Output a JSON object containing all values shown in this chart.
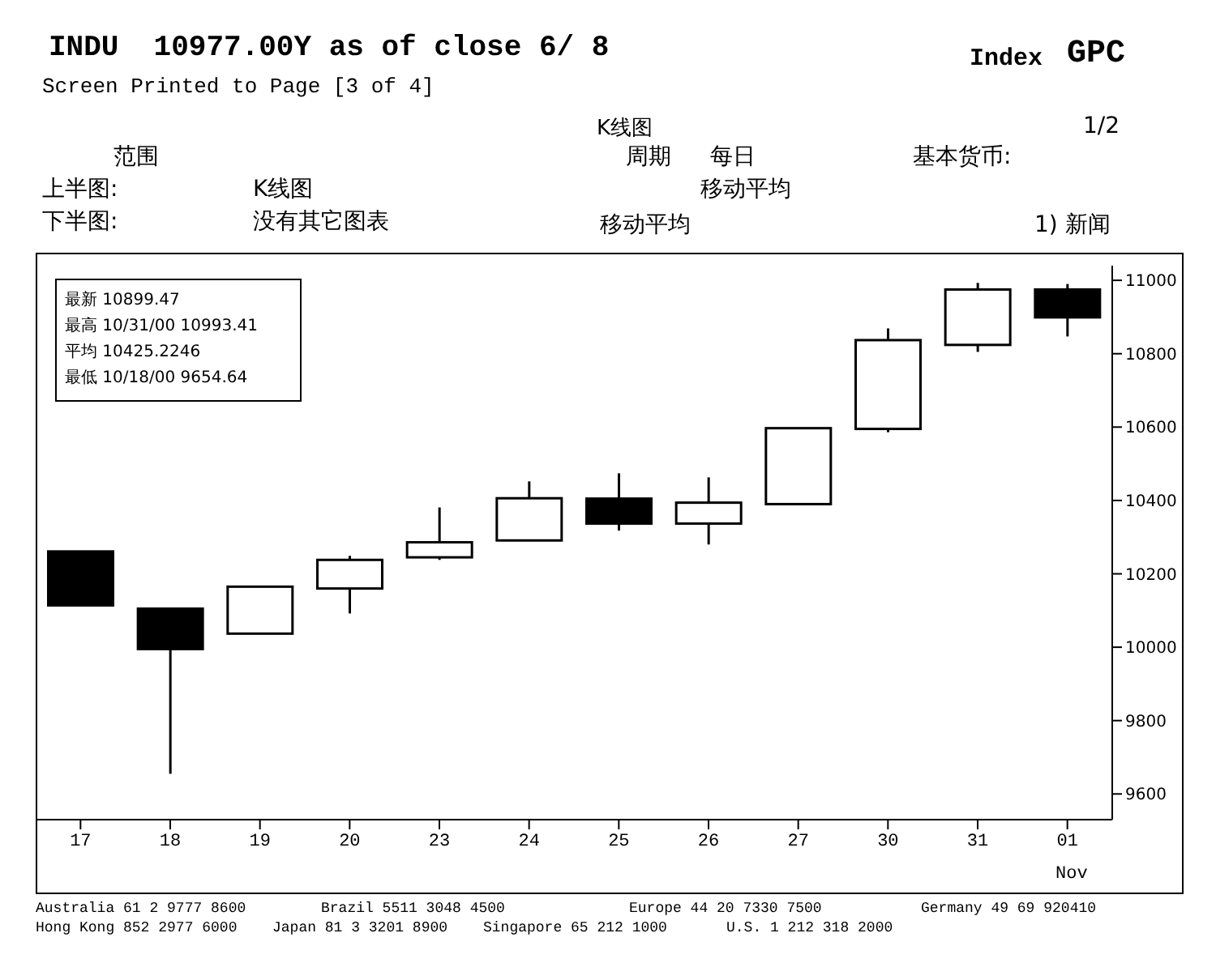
{
  "chart_data": {
    "type": "candlestick",
    "title": "INDU  10977.00Y as of close 6/ 8",
    "subtitle": "Screen Printed to Page [3 of 4]",
    "categories": [
      "17",
      "18",
      "19",
      "20",
      "23",
      "24",
      "25",
      "26",
      "27",
      "30",
      "31",
      "01"
    ],
    "ohlc": [
      [
        10261,
        10261,
        10114,
        10114
      ],
      [
        10105,
        10105,
        9655,
        9995
      ],
      [
        10037,
        10165,
        10037,
        10165
      ],
      [
        10160,
        10249,
        10092,
        10238
      ],
      [
        10245,
        10381,
        10238,
        10286
      ],
      [
        10291,
        10452,
        10291,
        10406
      ],
      [
        10405,
        10474,
        10318,
        10337
      ],
      [
        10337,
        10463,
        10280,
        10394
      ],
      [
        10390,
        10597,
        10390,
        10597
      ],
      [
        10595,
        10869,
        10586,
        10837
      ],
      [
        10824,
        10993,
        10805,
        10975
      ],
      [
        10975,
        10990,
        10847,
        10899
      ]
    ],
    "colors": [
      "#000000",
      "#000000",
      "#ffffff",
      "#ffffff",
      "#ffffff",
      "#ffffff",
      "#000000",
      "#ffffff",
      "#ffffff",
      "#ffffff",
      "#ffffff",
      "#000000"
    ],
    "ylim": [
      9530,
      11040
    ],
    "yticks": [
      9600,
      9800,
      10000,
      10200,
      10400,
      10600,
      10800,
      11000
    ],
    "annotations": [
      "Index",
      "GPC",
      "K线图",
      "1/2",
      "范围",
      "周期",
      "每日",
      "基本货币:",
      "上半图:",
      "K线图",
      "移动平均",
      "下半图:",
      "没有其它图表",
      "移动平均",
      "1) 新闻",
      "最新 10899.47",
      "最高 10/31/00 10993.41",
      "平均 10425.2246",
      "最低 10/18/00 9654.64",
      "Nov",
      "Australia 61 2 9777 8600",
      "Brazil 5511 3048 4500",
      "Europe 44 20 7330 7500",
      "Germany 49 69 920410",
      "Hong Kong 852 2977 6000",
      "Japan 81 3 3201 8900",
      "Singapore 65 212 1000",
      "U.S. 1 212 318 2000"
    ]
  }
}
